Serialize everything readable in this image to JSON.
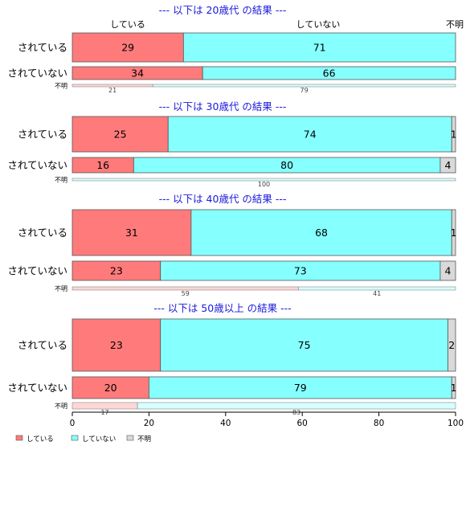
{
  "chart_data": {
    "type": "bar",
    "orientation": "horizontal",
    "stacked": true,
    "xlim": [
      0,
      100
    ],
    "x_ticks": [
      "0",
      "20",
      "40",
      "60",
      "80",
      "100"
    ],
    "column_labels": [
      "している",
      "していない",
      "不明"
    ],
    "series_names": [
      "している",
      "していない",
      "不明"
    ],
    "colors": {
      "doing": "#ff7b7b",
      "not_doing": "#86ffff",
      "unknown": "#d9d9d9",
      "doing_light": "#ffd6d6",
      "not_doing_light": "#d6ffff",
      "title": "#1a1adb"
    },
    "legend": {
      "position": "bottom-left",
      "items": [
        {
          "label": "している",
          "color": "#ff7b7b"
        },
        {
          "label": "していない",
          "color": "#86ffff"
        },
        {
          "label": "不明",
          "color": "#d9d9d9"
        }
      ]
    },
    "groups": [
      {
        "title": "--- 以下は 20歳代 の結果 ---",
        "rows": [
          {
            "label": "されている",
            "values": [
              29,
              71,
              0
            ],
            "value_labels": [
              "29",
              "71",
              ""
            ]
          },
          {
            "label": "されていない",
            "values": [
              34,
              66,
              0
            ],
            "value_labels": [
              "34",
              "66",
              ""
            ]
          },
          {
            "label": "不明",
            "values": [
              21,
              79,
              0
            ],
            "value_labels": [
              "21",
              "79",
              ""
            ]
          }
        ]
      },
      {
        "title": "--- 以下は 30歳代 の結果 ---",
        "rows": [
          {
            "label": "されている",
            "values": [
              25,
              74,
              1
            ],
            "value_labels": [
              "25",
              "74",
              "1"
            ]
          },
          {
            "label": "されていない",
            "values": [
              16,
              80,
              4
            ],
            "value_labels": [
              "16",
              "80",
              "4"
            ]
          },
          {
            "label": "不明",
            "values": [
              0,
              100,
              0
            ],
            "value_labels": [
              "",
              "100",
              ""
            ]
          }
        ]
      },
      {
        "title": "--- 以下は 40歳代 の結果 ---",
        "rows": [
          {
            "label": "されている",
            "values": [
              31,
              68,
              1
            ],
            "value_labels": [
              "31",
              "68",
              "1"
            ]
          },
          {
            "label": "されていない",
            "values": [
              23,
              73,
              4
            ],
            "value_labels": [
              "23",
              "73",
              "4"
            ]
          },
          {
            "label": "不明",
            "values": [
              59,
              41,
              0
            ],
            "value_labels": [
              "59",
              "41",
              ""
            ]
          }
        ]
      },
      {
        "title": "--- 以下は 50歳以上 の結果 ---",
        "rows": [
          {
            "label": "されている",
            "values": [
              23,
              75,
              2
            ],
            "value_labels": [
              "23",
              "75",
              "2"
            ]
          },
          {
            "label": "されていない",
            "values": [
              20,
              79,
              1
            ],
            "value_labels": [
              "20",
              "79",
              "1"
            ]
          },
          {
            "label": "不明",
            "values": [
              17,
              83,
              0
            ],
            "value_labels": [
              "17",
              "83",
              ""
            ]
          }
        ]
      }
    ]
  }
}
